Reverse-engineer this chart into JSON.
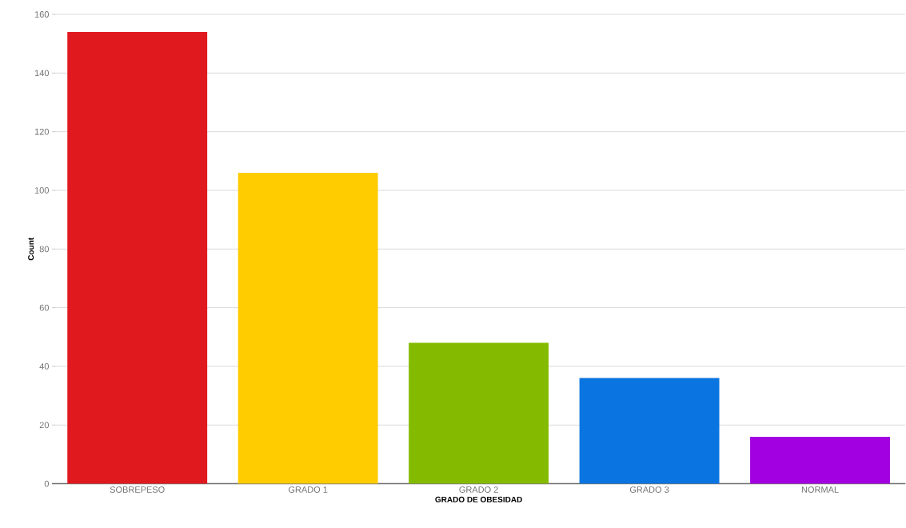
{
  "chart_data": {
    "type": "bar",
    "xlabel": "GRADO DE OBESIDAD",
    "ylabel": "Count",
    "categories": [
      "SOBREPESO",
      "GRADO 1",
      "GRADO 2",
      "GRADO 3",
      "NORMAL"
    ],
    "values": [
      154,
      106,
      48,
      36,
      16
    ],
    "colors": [
      "#e0191f",
      "#ffcc00",
      "#84bb00",
      "#0a74e0",
      "#a200e0"
    ],
    "ylim": [
      0,
      160
    ],
    "yticks": [
      0,
      20,
      40,
      60,
      80,
      100,
      120,
      140,
      160
    ],
    "grid": "y"
  }
}
